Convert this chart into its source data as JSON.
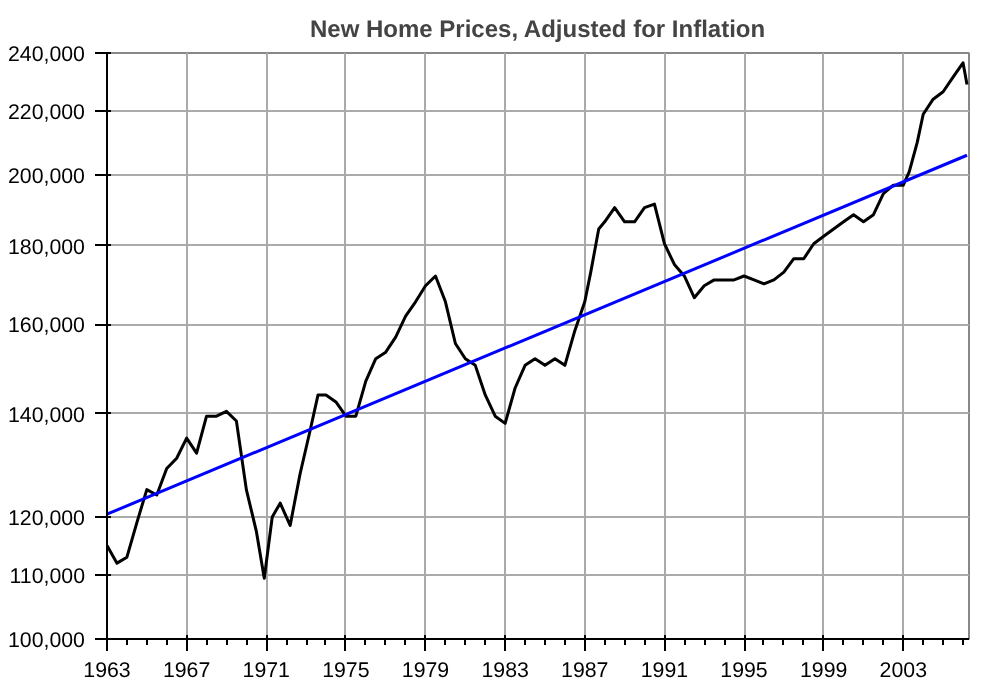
{
  "chart_data": {
    "type": "line",
    "title": "New Home Prices, Adjusted for Inflation",
    "log": "y",
    "grid": true,
    "line_style": "solid",
    "marker": "none",
    "xlim": [
      1963,
      2006.3
    ],
    "ylim": [
      100000,
      240000
    ],
    "xticks": [
      1963,
      {
        "value": 1964,
        "label": null
      },
      {
        "value": 1965,
        "label": null
      },
      {
        "value": 1966,
        "label": null
      },
      1967,
      {
        "value": 1968,
        "label": null
      },
      {
        "value": 1969,
        "label": null
      },
      {
        "value": 1970,
        "label": null
      },
      1971,
      {
        "value": 1972,
        "label": null
      },
      {
        "value": 1973,
        "label": null
      },
      {
        "value": 1974,
        "label": null
      },
      1975,
      {
        "value": 1976,
        "label": null
      },
      {
        "value": 1977,
        "label": null
      },
      {
        "value": 1978,
        "label": null
      },
      1979,
      {
        "value": 1980,
        "label": null
      },
      {
        "value": 1981,
        "label": null
      },
      {
        "value": 1982,
        "label": null
      },
      1983,
      {
        "value": 1984,
        "label": null
      },
      {
        "value": 1985,
        "label": null
      },
      {
        "value": 1986,
        "label": null
      },
      1987,
      {
        "value": 1988,
        "label": null
      },
      {
        "value": 1989,
        "label": null
      },
      {
        "value": 1990,
        "label": null
      },
      1991,
      {
        "value": 1992,
        "label": null
      },
      {
        "value": 1993,
        "label": null
      },
      {
        "value": 1994,
        "label": null
      },
      1995,
      {
        "value": 1996,
        "label": null
      },
      {
        "value": 1997,
        "label": null
      },
      {
        "value": 1998,
        "label": null
      },
      1999,
      {
        "value": 2000,
        "label": null
      },
      {
        "value": 2001,
        "label": null
      },
      {
        "value": 2002,
        "label": null
      },
      2003,
      {
        "value": 2004,
        "label": null
      },
      {
        "value": 2005,
        "label": null
      },
      {
        "value": 2006,
        "label": null
      }
    ],
    "yticks": [
      {
        "value": 100000,
        "label": "100,000"
      },
      {
        "value": 110000,
        "label": "110,000"
      },
      {
        "value": 120000,
        "label": "120,000"
      },
      {
        "value": 140000,
        "label": "140,000"
      },
      {
        "value": 160000,
        "label": "160,000"
      },
      {
        "value": 180000,
        "label": "180,000"
      },
      {
        "value": 200000,
        "label": "200,000"
      },
      {
        "value": 220000,
        "label": "220,000"
      },
      {
        "value": 240000,
        "label": "240,000"
      }
    ],
    "series": [
      {
        "color": "#000000",
        "x": [
          1963,
          1963.5,
          1964,
          1964.5,
          1965,
          1965.5,
          1966,
          1966.5,
          1967,
          1967.5,
          1968,
          1968.5,
          1969,
          1969.5,
          1970,
          1970.5,
          1970.9,
          1971.3,
          1971.7,
          1972.2,
          1972.7,
          1973.2,
          1973.6,
          1974,
          1974.5,
          1975,
          1975.5,
          1976,
          1976.5,
          1977,
          1977.5,
          1978,
          1978.5,
          1979,
          1979.5,
          1980,
          1980.5,
          1981,
          1981.5,
          1982,
          1982.5,
          1983,
          1983.5,
          1984,
          1984.5,
          1985,
          1985.5,
          1986,
          1986.5,
          1987,
          1987.3,
          1987.7,
          1988,
          1988.5,
          1989,
          1989.5,
          1990,
          1990.5,
          1991,
          1991.5,
          1992,
          1992.5,
          1993,
          1993.5,
          1994,
          1994.5,
          1995,
          1995.5,
          1996,
          1996.5,
          1997,
          1997.5,
          1998,
          1998.5,
          1999,
          1999.5,
          2000,
          2000.5,
          2001,
          2001.5,
          2002,
          2002.5,
          2003,
          2003.3,
          2003.7,
          2004,
          2004.5,
          2005,
          2005.5,
          2006,
          2006.2
        ],
        "values": [
          115000,
          112000,
          113000,
          119000,
          125000,
          124000,
          129000,
          131000,
          135000,
          132000,
          139500,
          139500,
          140500,
          138500,
          125000,
          117500,
          109500,
          120000,
          122500,
          118500,
          128000,
          136500,
          144000,
          144000,
          142500,
          139500,
          139500,
          147000,
          152000,
          153500,
          157000,
          162000,
          165500,
          169500,
          172000,
          165500,
          155500,
          152000,
          150500,
          144000,
          139500,
          138000,
          145500,
          150500,
          152000,
          150500,
          152000,
          150500,
          158500,
          165500,
          173000,
          184500,
          186500,
          190500,
          186500,
          186500,
          190500,
          191500,
          180500,
          175000,
          172000,
          166500,
          169500,
          171000,
          171000,
          171000,
          172000,
          171000,
          170000,
          171000,
          173000,
          176500,
          176500,
          180500,
          182500,
          184500,
          186500,
          188500,
          186500,
          188500,
          194500,
          197000,
          197000,
          201000,
          210000,
          219000,
          224000,
          226500,
          231500,
          236500,
          229000
        ]
      },
      {
        "color": "#0000ff",
        "x": [
          1963,
          2006.2
        ],
        "values": [
          120500,
          206000
        ]
      }
    ]
  }
}
